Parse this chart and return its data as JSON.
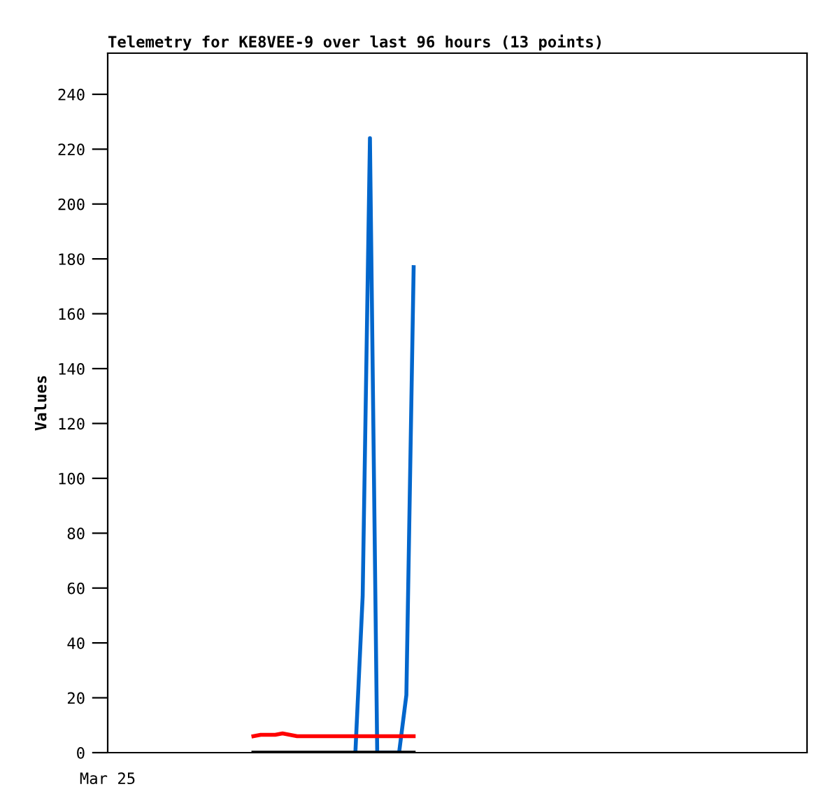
{
  "chart_data": {
    "type": "line",
    "title": "Telemetry for KE8VEE-9 over last 96 hours (13 points)",
    "ylabel": "Values",
    "annotations": [
      "Mar 25"
    ],
    "categories": [
      null,
      null,
      null,
      null,
      null,
      null,
      null,
      null,
      null,
      null,
      null,
      null,
      null,
      null,
      null,
      null,
      null,
      null,
      null,
      null,
      null,
      null,
      null,
      null,
      null,
      null,
      null,
      null,
      null,
      null,
      null,
      null,
      null,
      null,
      null,
      null,
      null,
      null,
      null,
      null,
      null,
      null,
      null,
      null,
      null,
      null,
      null,
      null,
      null,
      null,
      null,
      null,
      null,
      null,
      null,
      null,
      null,
      null,
      null,
      null,
      null,
      null,
      null,
      null,
      null,
      null,
      null,
      null,
      null,
      null,
      null,
      null,
      null,
      null,
      null,
      null,
      null,
      null,
      null,
      null,
      null,
      null,
      null,
      null,
      null,
      null,
      null,
      null,
      null,
      null,
      null,
      null,
      null,
      null,
      null,
      null,
      null
    ],
    "ylim": [
      0,
      255
    ],
    "yticks": [
      0,
      20,
      40,
      60,
      80,
      100,
      120,
      140,
      160,
      180,
      200,
      220,
      240
    ],
    "grid": false,
    "series": [
      {
        "color": "#0066cc",
        "values": [
          null,
          null,
          null,
          null,
          null,
          null,
          null,
          null,
          null,
          null,
          null,
          null,
          null,
          null,
          null,
          null,
          null,
          null,
          null,
          null,
          null,
          null,
          null,
          null,
          null,
          null,
          null,
          null,
          null,
          null,
          null,
          null,
          null,
          null,
          0,
          57,
          224,
          0,
          0,
          0,
          0,
          21,
          177,
          null,
          null,
          null,
          null,
          null,
          null,
          null,
          null,
          null,
          null,
          null,
          null,
          null,
          null,
          null,
          null,
          null,
          null,
          null,
          null,
          null,
          null,
          null,
          null,
          null,
          null,
          null,
          null,
          null,
          null,
          null,
          null,
          null,
          null,
          null,
          null,
          null,
          null,
          null,
          null,
          null,
          null,
          null,
          null,
          null,
          null,
          null,
          null,
          null,
          null,
          null,
          null,
          null,
          null
        ]
      },
      {
        "color": "#ff0000",
        "values": [
          null,
          null,
          null,
          null,
          null,
          null,
          null,
          null,
          null,
          null,
          null,
          null,
          null,
          null,
          null,
          null,
          null,
          null,
          null,
          null,
          6,
          6.5,
          6.5,
          6.5,
          7,
          6.5,
          6,
          6,
          6,
          6,
          6,
          6,
          6,
          6,
          6,
          6,
          6,
          6,
          6,
          6,
          6,
          6,
          6,
          null,
          null,
          null,
          null,
          null,
          null,
          null,
          null,
          null,
          null,
          null,
          null,
          null,
          null,
          null,
          null,
          null,
          null,
          null,
          null,
          null,
          null,
          null,
          null,
          null,
          null,
          null,
          null,
          null,
          null,
          null,
          null,
          null,
          null,
          null,
          null,
          null,
          null,
          null,
          null,
          null,
          null,
          null,
          null,
          null,
          null,
          null,
          null,
          null,
          null,
          null,
          null,
          null,
          null
        ]
      },
      {
        "color": "#000000",
        "values": [
          null,
          null,
          null,
          null,
          null,
          null,
          null,
          null,
          null,
          null,
          null,
          null,
          null,
          null,
          null,
          null,
          null,
          null,
          null,
          null,
          0,
          0,
          0,
          0,
          0,
          0,
          0,
          0,
          0,
          0,
          0,
          0,
          0,
          0,
          0,
          0,
          0,
          0,
          0,
          0,
          0,
          0,
          0,
          null,
          null,
          null,
          null,
          null,
          null,
          null,
          null,
          null,
          null,
          null,
          null,
          null,
          null,
          null,
          null,
          null,
          null,
          null,
          null,
          null,
          null,
          null,
          null,
          null,
          null,
          null,
          null,
          null,
          null,
          null,
          null,
          null,
          null,
          null,
          null,
          null,
          null,
          null,
          null,
          null,
          null,
          null,
          null,
          null,
          null,
          null,
          null,
          null,
          null,
          null,
          null,
          null,
          null
        ]
      }
    ]
  }
}
